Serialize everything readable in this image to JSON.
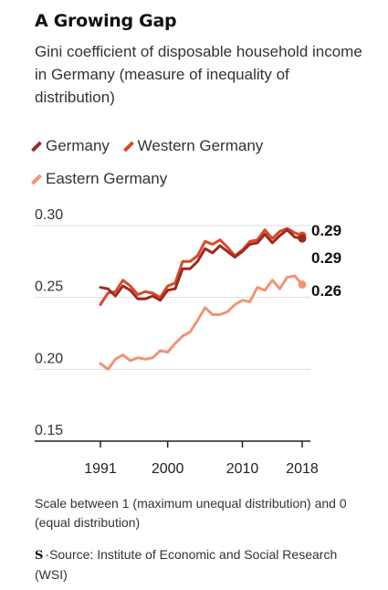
{
  "title": "A Growing Gap",
  "subtitle": "Gini coefficient of disposable household income in Germany (measure of inequality of distribution)",
  "note": "Scale between 1 (maximum unequal distribution) and 0 (equal distribution)",
  "logo_glyph": "S",
  "source": "Source: Institute of Economic and Social Research (WSI)",
  "colors": {
    "germany": "#9c2a1f",
    "western": "#d94a28",
    "eastern": "#f09474",
    "grid": "#dddddd",
    "axis": "#222222"
  },
  "chart_data": {
    "type": "line",
    "title": "A Growing Gap",
    "xlabel": "",
    "ylabel": "",
    "xlim": [
      1991,
      2018
    ],
    "ylim": [
      0.15,
      0.3
    ],
    "x_ticks": [
      1991,
      2000,
      2010,
      2018
    ],
    "y_ticks": [
      "0.30",
      "0.25",
      "0.20",
      "0.15"
    ],
    "grid": "horizontal",
    "legend_position": "top-left",
    "x": [
      1991,
      1992,
      1993,
      1994,
      1995,
      1996,
      1997,
      1998,
      1999,
      2000,
      2001,
      2002,
      2003,
      2004,
      2005,
      2006,
      2007,
      2008,
      2009,
      2010,
      2011,
      2012,
      2013,
      2014,
      2015,
      2016,
      2017,
      2018
    ],
    "series": [
      {
        "name": "Germany",
        "color": "#9c2a1f",
        "end_label": "0.29",
        "values": [
          0.257,
          0.256,
          0.251,
          0.258,
          0.255,
          0.249,
          0.249,
          0.251,
          0.248,
          0.255,
          0.256,
          0.27,
          0.27,
          0.275,
          0.284,
          0.281,
          0.286,
          0.282,
          0.278,
          0.282,
          0.287,
          0.288,
          0.294,
          0.288,
          0.293,
          0.297,
          0.292,
          0.291
        ]
      },
      {
        "name": "Western Germany",
        "color": "#d94a28",
        "end_label": "0.29",
        "values": [
          0.245,
          0.253,
          0.254,
          0.262,
          0.258,
          0.252,
          0.254,
          0.253,
          0.25,
          0.258,
          0.26,
          0.275,
          0.275,
          0.279,
          0.289,
          0.287,
          0.29,
          0.285,
          0.279,
          0.283,
          0.289,
          0.29,
          0.297,
          0.291,
          0.296,
          0.298,
          0.295,
          0.293
        ]
      },
      {
        "name": "Eastern Germany",
        "color": "#f09474",
        "end_label": "0.26",
        "values": [
          0.204,
          0.2,
          0.207,
          0.21,
          0.206,
          0.208,
          0.207,
          0.208,
          0.213,
          0.212,
          0.218,
          0.223,
          0.226,
          0.234,
          0.243,
          0.238,
          0.238,
          0.24,
          0.245,
          0.248,
          0.247,
          0.257,
          0.255,
          0.262,
          0.256,
          0.264,
          0.265,
          0.259
        ]
      }
    ]
  }
}
